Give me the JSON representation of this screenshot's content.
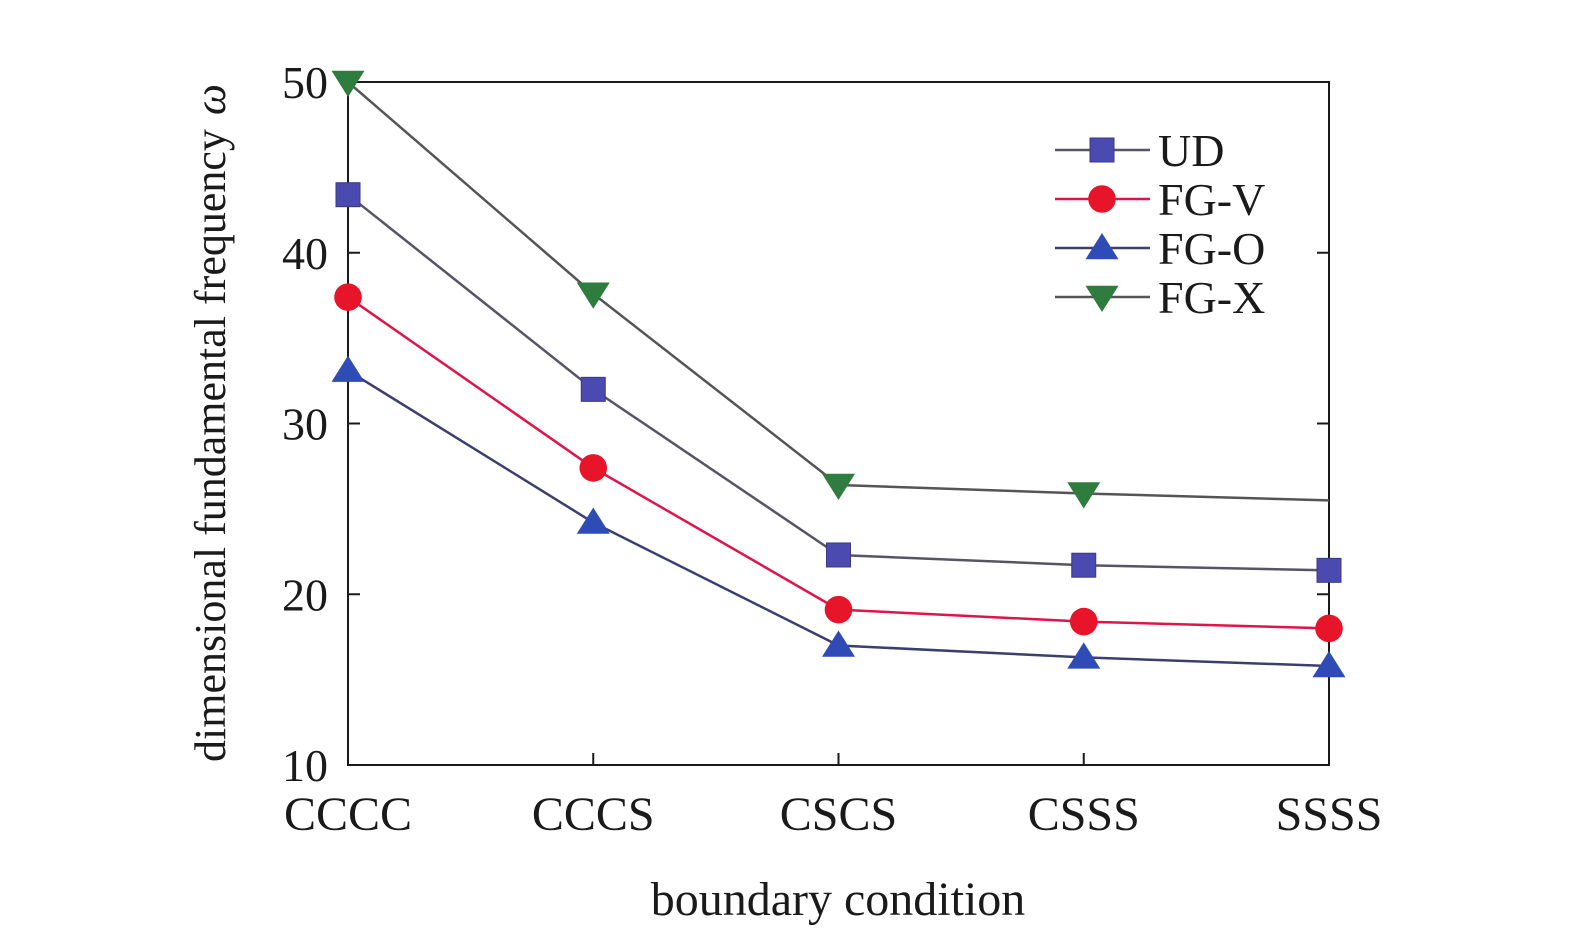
{
  "chart_data": {
    "type": "line",
    "title": "",
    "xlabel": "boundary condition",
    "ylabel": "dimensional fundamental frequency",
    "ylabel_symbol": "ω",
    "categories": [
      "CCCC",
      "CCCS",
      "CSCS",
      "CSSS",
      "SSSS"
    ],
    "ylim": [
      10,
      50
    ],
    "yticks": [
      10,
      20,
      30,
      40,
      50
    ],
    "grid": false,
    "legend_position": "top-right",
    "series": [
      {
        "name": "UD",
        "marker": "square",
        "color": "#4a4ab0",
        "line_color": "#555566",
        "values": [
          43.4,
          32.0,
          22.3,
          21.7,
          21.4
        ]
      },
      {
        "name": "FG-V",
        "marker": "circle",
        "color": "#e8142a",
        "line_color": "#e01448",
        "values": [
          37.4,
          27.4,
          19.1,
          18.4,
          18.0
        ]
      },
      {
        "name": "FG-O",
        "marker": "triangle-up",
        "color": "#2f4bb5",
        "line_color": "#3a3f6e",
        "values": [
          33.1,
          24.2,
          17.0,
          16.3,
          15.8
        ]
      },
      {
        "name": "FG-X",
        "marker": "triangle-down",
        "color": "#2e7d3e",
        "line_color": "#555555",
        "values": [
          50.0,
          37.6,
          26.4,
          25.9,
          25.5
        ]
      }
    ]
  }
}
